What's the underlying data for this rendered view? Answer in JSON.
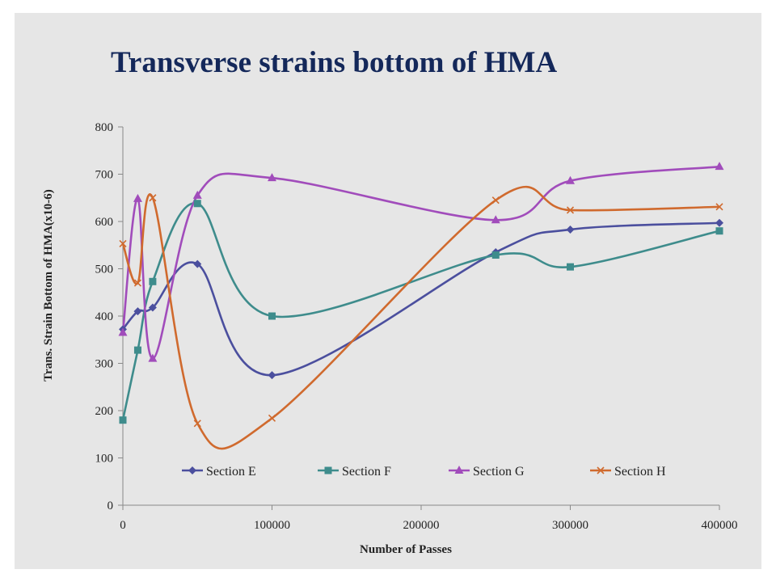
{
  "chart_data": {
    "type": "line",
    "title": "Transverse strains bottom of HMA",
    "xlabel": "Number of Passes",
    "ylabel": "Trans. Strain Bottom of HMA(x10-6)",
    "xlim": [
      0,
      400000
    ],
    "ylim": [
      0,
      800
    ],
    "xticks": [
      0,
      100000,
      200000,
      300000,
      400000
    ],
    "yticks": [
      0,
      100,
      200,
      300,
      400,
      500,
      600,
      700,
      800
    ],
    "smooth": true,
    "grid": false,
    "legend_position": "inside-bottom",
    "series": [
      {
        "name": "Section E",
        "color": "#4b4f9e",
        "marker": "diamond",
        "points": [
          [
            0,
            372
          ],
          [
            10000,
            410
          ],
          [
            20000,
            418
          ],
          [
            50000,
            510
          ],
          [
            100000,
            275
          ],
          [
            250000,
            535
          ],
          [
            300000,
            583
          ],
          [
            400000,
            597
          ]
        ]
      },
      {
        "name": "Section F",
        "color": "#3e8c8c",
        "marker": "square",
        "points": [
          [
            0,
            180
          ],
          [
            10000,
            328
          ],
          [
            20000,
            473
          ],
          [
            50000,
            638
          ],
          [
            100000,
            400
          ],
          [
            250000,
            529
          ],
          [
            300000,
            504
          ],
          [
            400000,
            580
          ]
        ]
      },
      {
        "name": "Section G",
        "color": "#a14cbb",
        "marker": "triangle",
        "points": [
          [
            0,
            365
          ],
          [
            10000,
            648
          ],
          [
            20000,
            310
          ],
          [
            50000,
            655
          ],
          [
            100000,
            692
          ],
          [
            250000,
            603
          ],
          [
            300000,
            686
          ],
          [
            400000,
            716
          ]
        ]
      },
      {
        "name": "Section H",
        "color": "#d06a2e",
        "marker": "x",
        "points": [
          [
            0,
            553
          ],
          [
            10000,
            470
          ],
          [
            20000,
            650
          ],
          [
            50000,
            173
          ],
          [
            100000,
            184
          ],
          [
            250000,
            645
          ],
          [
            300000,
            624
          ],
          [
            400000,
            631
          ]
        ]
      }
    ]
  }
}
